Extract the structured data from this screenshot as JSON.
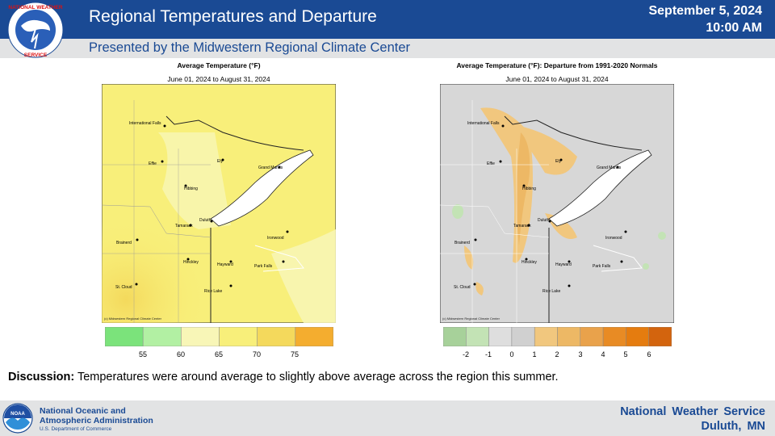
{
  "header": {
    "title": "Regional Temperatures and Departure",
    "subtitle": "Presented by the Midwestern Regional Climate Center",
    "date": "September 5, 2024",
    "time": "10:00 AM",
    "logo_icon": "nws-logo-icon"
  },
  "left_map": {
    "title": "Average Temperature (°F)",
    "date_range": "June 01, 2024 to August 31, 2024",
    "credit": "(c) Midwestern Regional Climate Center",
    "colorbar": {
      "colors": [
        "#7be37b",
        "#b2f0a3",
        "#f8f6b7",
        "#f8ef7a",
        "#f4d95c",
        "#f4ad2f"
      ],
      "ticks": [
        "55",
        "60",
        "65",
        "70",
        "75"
      ]
    }
  },
  "right_map": {
    "title": "Average Temperature (°F): Departure from 1991-2020 Normals",
    "date_range": "June 01, 2024 to August 31, 2024",
    "credit": "(c) Midwestern Regional Climate Center",
    "colorbar": {
      "colors": [
        "#a7d19a",
        "#c3e3b5",
        "#dedede",
        "#d0d0d0",
        "#f1c77e",
        "#edb865",
        "#e9a24b",
        "#e88b24",
        "#e57c0f",
        "#d3640e"
      ],
      "ticks": [
        "-2",
        "-1",
        "0",
        "1",
        "2",
        "3",
        "4",
        "5",
        "6"
      ]
    }
  },
  "cities": [
    "International Falls",
    "Effie",
    "Ely",
    "Grand Marais",
    "Hibbing",
    "Duluth",
    "Tamarack",
    "Ironwood",
    "Brainerd",
    "Hinckley",
    "Hayward",
    "Park Falls",
    "St. Cloud",
    "Rice Lake"
  ],
  "discussion": {
    "label": "Discussion:",
    "text": " Temperatures were around average to slightly above average across the region this summer."
  },
  "footer": {
    "noaa_line1": "National Oceanic and",
    "noaa_line2": "Atmospheric Administration",
    "noaa_dept": "U.S. Department of Commerce",
    "nws_line1": "National Weather Service",
    "nws_line2": "Duluth, MN"
  },
  "colors": {
    "header_blue": "#1a4a94",
    "gray_bar": "#e2e3e4",
    "lake": "#ffffff",
    "map_yellow": "#f8ef7a",
    "map_gray": "#d7d7d7"
  }
}
